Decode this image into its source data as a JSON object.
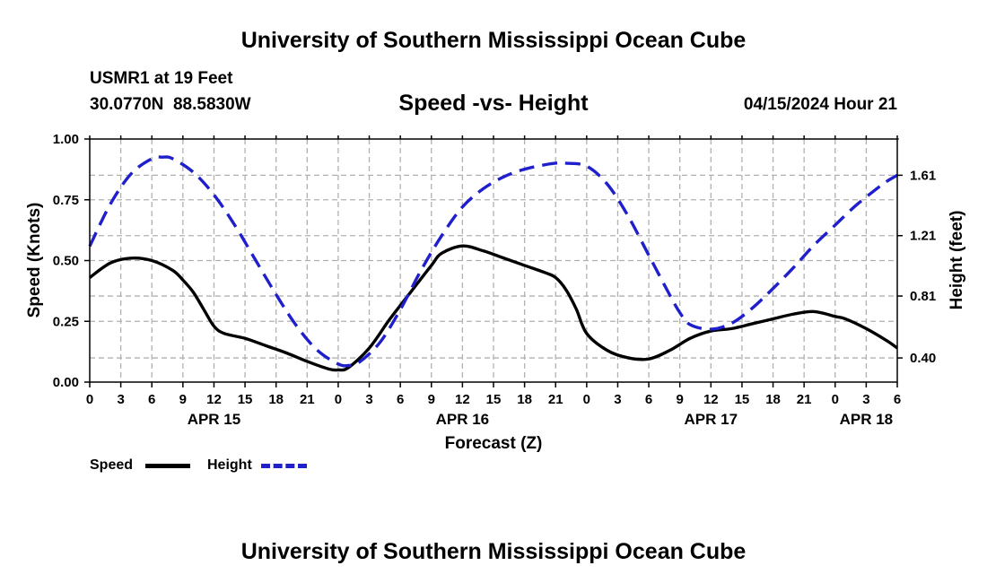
{
  "header": {
    "title": "University of Southern Mississippi Ocean Cube",
    "station": "USMR1 at 19 Feet",
    "coords": "30.0770N  88.5830W",
    "subtitle": "Speed -vs- Height",
    "datetime": "04/15/2024 Hour 21"
  },
  "footer": {
    "title": "University of Southern Mississippi Ocean Cube"
  },
  "legend": {
    "speed_label": "Speed",
    "height_label": "Height"
  },
  "colors": {
    "speed": "#000000",
    "height": "#1f1fcc",
    "grid": "#b0b0b0"
  },
  "chart_data": {
    "type": "line",
    "xlabel": "Forecast (Z)",
    "ylabel": "Speed (Knots)",
    "y2label": "Height (feet)",
    "xlim": [
      0,
      78
    ],
    "ylim": [
      0,
      1.0
    ],
    "y2lim": [
      0.24,
      1.85
    ],
    "x_ticks": [
      0,
      3,
      6,
      9,
      12,
      15,
      18,
      21,
      24,
      27,
      30,
      33,
      36,
      39,
      42,
      45,
      48,
      51,
      54,
      57,
      60,
      63,
      66,
      69,
      72,
      75,
      78
    ],
    "x_tick_labels": [
      "0",
      "3",
      "6",
      "9",
      "12",
      "15",
      "18",
      "21",
      "0",
      "3",
      "6",
      "9",
      "12",
      "15",
      "18",
      "21",
      "0",
      "3",
      "6",
      "9",
      "12",
      "15",
      "18",
      "21",
      "0",
      "3",
      "6"
    ],
    "y_ticks": [
      0,
      0.25,
      0.5,
      0.75,
      1.0
    ],
    "y_tick_labels": [
      "0.00",
      "0.25",
      "0.50",
      "0.75",
      "1.00"
    ],
    "y2_ticks": [
      0.4,
      0.81,
      1.21,
      1.61
    ],
    "y2_tick_labels": [
      "0.40",
      "0.81",
      "1.21",
      "1.61"
    ],
    "day_labels": [
      {
        "x": 12,
        "label": "APR 15"
      },
      {
        "x": 36,
        "label": "APR 16"
      },
      {
        "x": 60,
        "label": "APR 17"
      },
      {
        "x": 75,
        "label": "APR 18"
      }
    ],
    "series": [
      {
        "name": "Speed",
        "axis": "left",
        "x": [
          0,
          2,
          4,
          6,
          8,
          9,
          10,
          11,
          12,
          13,
          15,
          17,
          19,
          21,
          23,
          24,
          25,
          27,
          29,
          31,
          33,
          34,
          36,
          38,
          40,
          42,
          44,
          45,
          46,
          47,
          48,
          50,
          52,
          54,
          56,
          58,
          60,
          62,
          64,
          66,
          68,
          70,
          72,
          73,
          75,
          77,
          78
        ],
        "values": [
          0.43,
          0.49,
          0.51,
          0.5,
          0.46,
          0.42,
          0.37,
          0.3,
          0.23,
          0.2,
          0.18,
          0.15,
          0.12,
          0.085,
          0.055,
          0.05,
          0.06,
          0.14,
          0.26,
          0.37,
          0.48,
          0.53,
          0.56,
          0.54,
          0.51,
          0.48,
          0.45,
          0.43,
          0.38,
          0.3,
          0.2,
          0.13,
          0.1,
          0.095,
          0.13,
          0.18,
          0.21,
          0.22,
          0.24,
          0.26,
          0.28,
          0.29,
          0.27,
          0.26,
          0.22,
          0.17,
          0.14
        ]
      },
      {
        "name": "Height",
        "axis": "right",
        "x": [
          0,
          2,
          4,
          6,
          7,
          8,
          10,
          12,
          14,
          16,
          18,
          20,
          22,
          24,
          25,
          26,
          28,
          30,
          32,
          34,
          36,
          38,
          40,
          42,
          44,
          45,
          46,
          48,
          50,
          52,
          54,
          56,
          57,
          58,
          60,
          62,
          64,
          66,
          68,
          70,
          72,
          74,
          76,
          77,
          78
        ],
        "values": [
          1.14,
          1.42,
          1.62,
          1.72,
          1.73,
          1.72,
          1.63,
          1.48,
          1.28,
          1.05,
          0.82,
          0.61,
          0.45,
          0.36,
          0.35,
          0.37,
          0.5,
          0.72,
          0.98,
          1.21,
          1.4,
          1.52,
          1.6,
          1.65,
          1.68,
          1.69,
          1.69,
          1.67,
          1.55,
          1.34,
          1.08,
          0.82,
          0.7,
          0.62,
          0.59,
          0.63,
          0.73,
          0.86,
          1.0,
          1.15,
          1.28,
          1.41,
          1.52,
          1.57,
          1.61
        ]
      }
    ]
  }
}
